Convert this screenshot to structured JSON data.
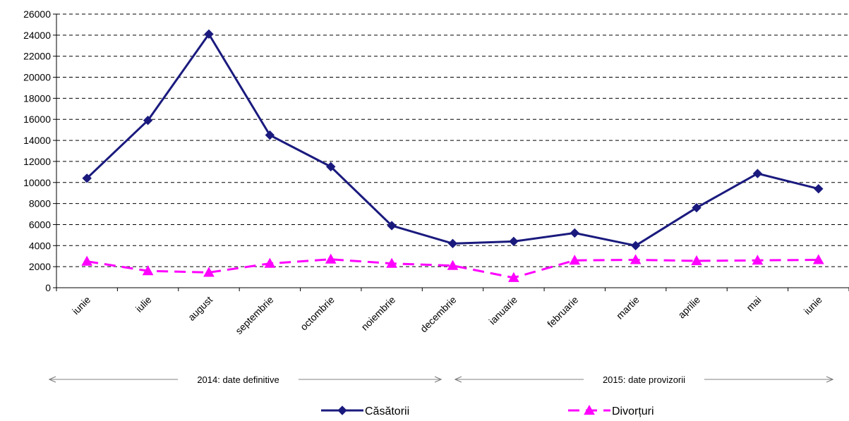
{
  "chart_data": {
    "type": "line",
    "categories": [
      "iunie",
      "iulie",
      "august",
      "septembrie",
      "octombrie",
      "noiembrie",
      "decembrie",
      "ianuarie",
      "februarie",
      "martie",
      "aprilie",
      "mai",
      "iunie"
    ],
    "series": [
      {
        "name": "Căsătorii",
        "color": "#1a1a7e",
        "marker": "diamond",
        "line_style": "solid",
        "values": [
          10400,
          15900,
          24100,
          14500,
          11500,
          5900,
          4200,
          4400,
          5200,
          4000,
          7600,
          10850,
          9400
        ]
      },
      {
        "name": "Divorțuri",
        "color": "#ff00ff",
        "marker": "triangle",
        "line_style": "dashed",
        "values": [
          2500,
          1600,
          1450,
          2300,
          2700,
          2300,
          2100,
          950,
          2600,
          2650,
          2550,
          2600,
          2650
        ]
      }
    ],
    "ylim": [
      0,
      26000
    ],
    "yticks": [
      0,
      2000,
      4000,
      6000,
      8000,
      10000,
      12000,
      14000,
      16000,
      18000,
      20000,
      22000,
      24000,
      26000
    ],
    "grid": "horizontal-dashed",
    "legend_position": "bottom",
    "annotations": [
      {
        "text": "2014: date definitive",
        "from_category": 0,
        "to_category": 6
      },
      {
        "text": "2015: date provizorii",
        "from_category": 7,
        "to_category": 12
      }
    ]
  }
}
